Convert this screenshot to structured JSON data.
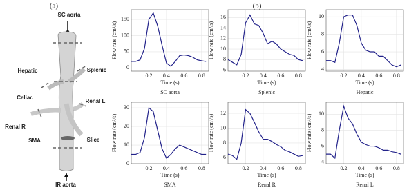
{
  "panel_labels": [
    "(a)",
    "(b)"
  ],
  "diagram": {
    "labels": [
      "SC aorta",
      "Hepatic",
      "Splenic",
      "Celiac",
      "Renal L",
      "Renal R",
      "SMA",
      "Slice",
      "IR aorta"
    ]
  },
  "chart_data": [
    {
      "type": "line",
      "title": "SC aorta",
      "x_label": "Time (s)",
      "y_label": "Flow rate (cm³/s)",
      "x": [
        0,
        0.05,
        0.1,
        0.15,
        0.2,
        0.25,
        0.3,
        0.35,
        0.4,
        0.45,
        0.5,
        0.55,
        0.6,
        0.65,
        0.7,
        0.75,
        0.8,
        0.85
      ],
      "series": [
        {
          "color": "#22228a",
          "values": [
            20,
            20,
            25,
            60,
            150,
            170,
            130,
            70,
            15,
            5,
            20,
            38,
            40,
            38,
            33,
            25,
            22,
            20
          ]
        }
      ],
      "xlim": [
        0,
        0.88
      ],
      "xticks": [
        0.2,
        0.4,
        0.6,
        0.8
      ],
      "ylim": [
        -10,
        180
      ],
      "yticks": [
        0,
        50,
        100,
        150
      ],
      "grid": true
    },
    {
      "type": "line",
      "title": "Splenic",
      "x_label": "Time (s)",
      "y_label": "Flow rate (cm³/s)",
      "x": [
        0,
        0.05,
        0.1,
        0.15,
        0.2,
        0.25,
        0.3,
        0.35,
        0.4,
        0.45,
        0.5,
        0.55,
        0.6,
        0.65,
        0.7,
        0.75,
        0.8,
        0.85
      ],
      "series": [
        {
          "color": "#22228a",
          "values": [
            8,
            7.5,
            7,
            9,
            15,
            16.5,
            14.8,
            14.5,
            13,
            11,
            11.5,
            11,
            10,
            9.5,
            9,
            8.8,
            8,
            7.8
          ]
        }
      ],
      "xlim": [
        0,
        0.88
      ],
      "xticks": [
        0.2,
        0.4,
        0.6,
        0.8
      ],
      "ylim": [
        5.8,
        17.5
      ],
      "yticks": [
        6,
        8,
        10,
        12,
        14,
        16
      ],
      "grid": true
    },
    {
      "type": "line",
      "title": "Hepatic",
      "x_label": "Time (s)",
      "y_label": "Flow rate (cm³/s)",
      "x": [
        0,
        0.05,
        0.1,
        0.15,
        0.2,
        0.25,
        0.3,
        0.35,
        0.4,
        0.45,
        0.5,
        0.55,
        0.6,
        0.65,
        0.7,
        0.75,
        0.8,
        0.85
      ],
      "series": [
        {
          "color": "#22228a",
          "values": [
            5,
            5,
            4.8,
            7,
            10,
            10.2,
            10.2,
            9,
            7,
            6.2,
            6,
            6,
            5.5,
            5.5,
            5,
            4.5,
            4.3,
            4.5
          ]
        }
      ],
      "xlim": [
        0,
        0.88
      ],
      "xticks": [
        0.2,
        0.4,
        0.6,
        0.8
      ],
      "ylim": [
        3.8,
        10.8
      ],
      "yticks": [
        4,
        6,
        8,
        10
      ],
      "grid": true
    },
    {
      "type": "line",
      "title": "SMA",
      "x_label": "Time (s)",
      "y_label": "Flow rate (cm³/s)",
      "x": [
        0,
        0.05,
        0.1,
        0.15,
        0.2,
        0.25,
        0.3,
        0.35,
        0.4,
        0.45,
        0.5,
        0.55,
        0.6,
        0.65,
        0.7,
        0.75,
        0.8,
        0.85
      ],
      "series": [
        {
          "color": "#22228a",
          "values": [
            5,
            5,
            6,
            14,
            30,
            28,
            18,
            8,
            3,
            5,
            8,
            10,
            9,
            8,
            7,
            6,
            5,
            5
          ]
        }
      ],
      "xlim": [
        0,
        0.88
      ],
      "xticks": [
        0.2,
        0.4,
        0.6,
        0.8
      ],
      "ylim": [
        0,
        33
      ],
      "yticks": [
        0,
        10,
        20,
        30
      ],
      "grid": true
    },
    {
      "type": "line",
      "title": "Renal R",
      "x_label": "Time (s)",
      "y_label": "Flow rate (cm³/s)",
      "x": [
        0,
        0.05,
        0.1,
        0.15,
        0.2,
        0.25,
        0.3,
        0.35,
        0.4,
        0.45,
        0.5,
        0.55,
        0.6,
        0.65,
        0.7,
        0.75,
        0.8,
        0.85
      ],
      "series": [
        {
          "color": "#22228a",
          "values": [
            6.5,
            6.3,
            5.8,
            8,
            12.5,
            12,
            10.8,
            9.5,
            8.5,
            8.5,
            8.2,
            7.8,
            7.5,
            7,
            6.8,
            6.5,
            6.2,
            6.3
          ]
        }
      ],
      "xlim": [
        0,
        0.88
      ],
      "xticks": [
        0.2,
        0.4,
        0.6,
        0.8
      ],
      "ylim": [
        5.2,
        13.5
      ],
      "yticks": [
        6,
        8,
        10,
        12
      ],
      "grid": true
    },
    {
      "type": "line",
      "title": "Renal L",
      "x_label": "Time (s)",
      "y_label": "Flow rate (cm³/s)",
      "x": [
        0,
        0.05,
        0.1,
        0.15,
        0.2,
        0.25,
        0.3,
        0.35,
        0.4,
        0.45,
        0.5,
        0.55,
        0.6,
        0.65,
        0.7,
        0.75,
        0.8,
        0.85
      ],
      "series": [
        {
          "color": "#22228a",
          "values": [
            5,
            5,
            4.5,
            8,
            11,
            9.5,
            8.8,
            7.5,
            6.5,
            6.2,
            6,
            6,
            5.8,
            5.5,
            5.5,
            5.3,
            5.2,
            5
          ]
        }
      ],
      "xlim": [
        0,
        0.88
      ],
      "xticks": [
        0.2,
        0.4,
        0.6,
        0.8
      ],
      "ylim": [
        3.8,
        11.5
      ],
      "yticks": [
        4,
        6,
        8,
        10
      ],
      "grid": true
    }
  ]
}
